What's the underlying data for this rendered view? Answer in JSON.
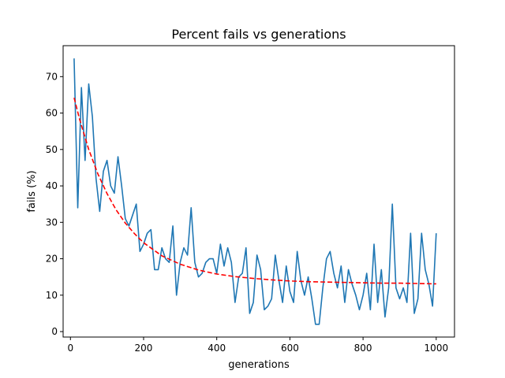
{
  "chart_data": {
    "type": "line",
    "title": "Percent fails vs generations",
    "xlabel": "generations",
    "ylabel": "fails (%)",
    "xlim": [
      -20,
      1050
    ],
    "ylim": [
      -1.5,
      78.5
    ],
    "xticks": [
      0,
      200,
      400,
      600,
      800,
      1000
    ],
    "yticks": [
      0,
      10,
      20,
      30,
      40,
      50,
      60,
      70
    ],
    "grid": false,
    "legend": "none",
    "series": [
      {
        "style": "solid",
        "color": "#1f77b4",
        "x": [
          10,
          20,
          30,
          40,
          50,
          60,
          70,
          80,
          90,
          100,
          110,
          120,
          130,
          140,
          150,
          160,
          170,
          180,
          190,
          200,
          210,
          220,
          230,
          240,
          250,
          260,
          270,
          280,
          290,
          300,
          310,
          320,
          330,
          340,
          350,
          360,
          370,
          380,
          390,
          400,
          410,
          420,
          430,
          440,
          450,
          460,
          470,
          480,
          490,
          500,
          510,
          520,
          530,
          540,
          550,
          560,
          570,
          580,
          590,
          600,
          610,
          620,
          630,
          640,
          650,
          660,
          670,
          680,
          690,
          700,
          710,
          720,
          730,
          740,
          750,
          760,
          770,
          780,
          790,
          800,
          810,
          820,
          830,
          840,
          850,
          860,
          870,
          880,
          890,
          900,
          910,
          920,
          930,
          940,
          950,
          960,
          970,
          980,
          990,
          1000
        ],
        "y": [
          75,
          34,
          67,
          47,
          68,
          59,
          42,
          33,
          44,
          47,
          40,
          38,
          48,
          40,
          31,
          29,
          32,
          35,
          22,
          24,
          27,
          28,
          17,
          17,
          23,
          20,
          19,
          29,
          10,
          19,
          23,
          21,
          34,
          19,
          15,
          16,
          19,
          20,
          20,
          16,
          24,
          18,
          23,
          19,
          8,
          15,
          16,
          23,
          5,
          8,
          21,
          17,
          6,
          7,
          9,
          21,
          14,
          8,
          18,
          11,
          8,
          22,
          14,
          10,
          15,
          9,
          2,
          2,
          12,
          20,
          22,
          16,
          12,
          18,
          8,
          17,
          13,
          10,
          6,
          10,
          16,
          6,
          24,
          8,
          17,
          4,
          12,
          35,
          12,
          9,
          12,
          8,
          27,
          5,
          9,
          27,
          17,
          13,
          7,
          27
        ]
      },
      {
        "style": "dashed",
        "color": "#ff0000",
        "x": [
          10,
          25,
          50,
          75,
          100,
          125,
          150,
          175,
          200,
          250,
          300,
          350,
          400,
          450,
          500,
          550,
          600,
          650,
          700,
          750,
          800,
          850,
          900,
          950,
          1000
        ],
        "y": [
          64.2,
          58.3,
          50.0,
          43.3,
          37.9,
          33.4,
          29.8,
          26.9,
          24.4,
          20.8,
          18.5,
          16.9,
          15.8,
          15.1,
          14.6,
          14.2,
          13.9,
          13.7,
          13.6,
          13.5,
          13.4,
          13.3,
          13.3,
          13.2,
          13.1
        ]
      }
    ]
  }
}
